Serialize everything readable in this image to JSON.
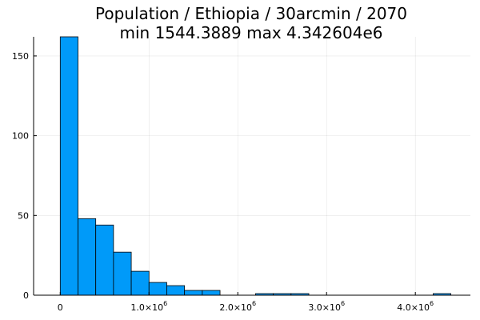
{
  "chart_data": {
    "type": "bar",
    "title": "Population / Ethiopia / 30arcmin / 2070",
    "subtitle": "min 1544.3889  max 4.342604e6",
    "xlabel": "",
    "ylabel": "",
    "bar_color": "#009af9",
    "grid": true,
    "legend": false,
    "xlim": [
      -300000,
      4620000
    ],
    "ylim": [
      0,
      162
    ],
    "bin_width": 200000,
    "bin_starts": [
      0,
      200000,
      400000,
      600000,
      800000,
      1000000,
      1200000,
      1400000,
      1600000,
      1800000,
      2000000,
      2200000,
      2400000,
      2600000,
      2800000,
      3000000,
      3200000,
      3400000,
      3600000,
      3800000,
      4000000,
      4200000
    ],
    "values": [
      162,
      48,
      44,
      27,
      15,
      8,
      6,
      3,
      3,
      0,
      0,
      1,
      1,
      1,
      0,
      0,
      0,
      0,
      0,
      0,
      0,
      1
    ],
    "x_ticks": [
      {
        "value": 0,
        "mantissa": "0",
        "exponent": ""
      },
      {
        "value": 1000000,
        "mantissa": "1.0×10",
        "exponent": "6"
      },
      {
        "value": 2000000,
        "mantissa": "2.0×10",
        "exponent": "6"
      },
      {
        "value": 3000000,
        "mantissa": "3.0×10",
        "exponent": "6"
      },
      {
        "value": 4000000,
        "mantissa": "4.0×10",
        "exponent": "6"
      }
    ],
    "y_ticks": [
      0,
      50,
      100,
      150
    ]
  }
}
